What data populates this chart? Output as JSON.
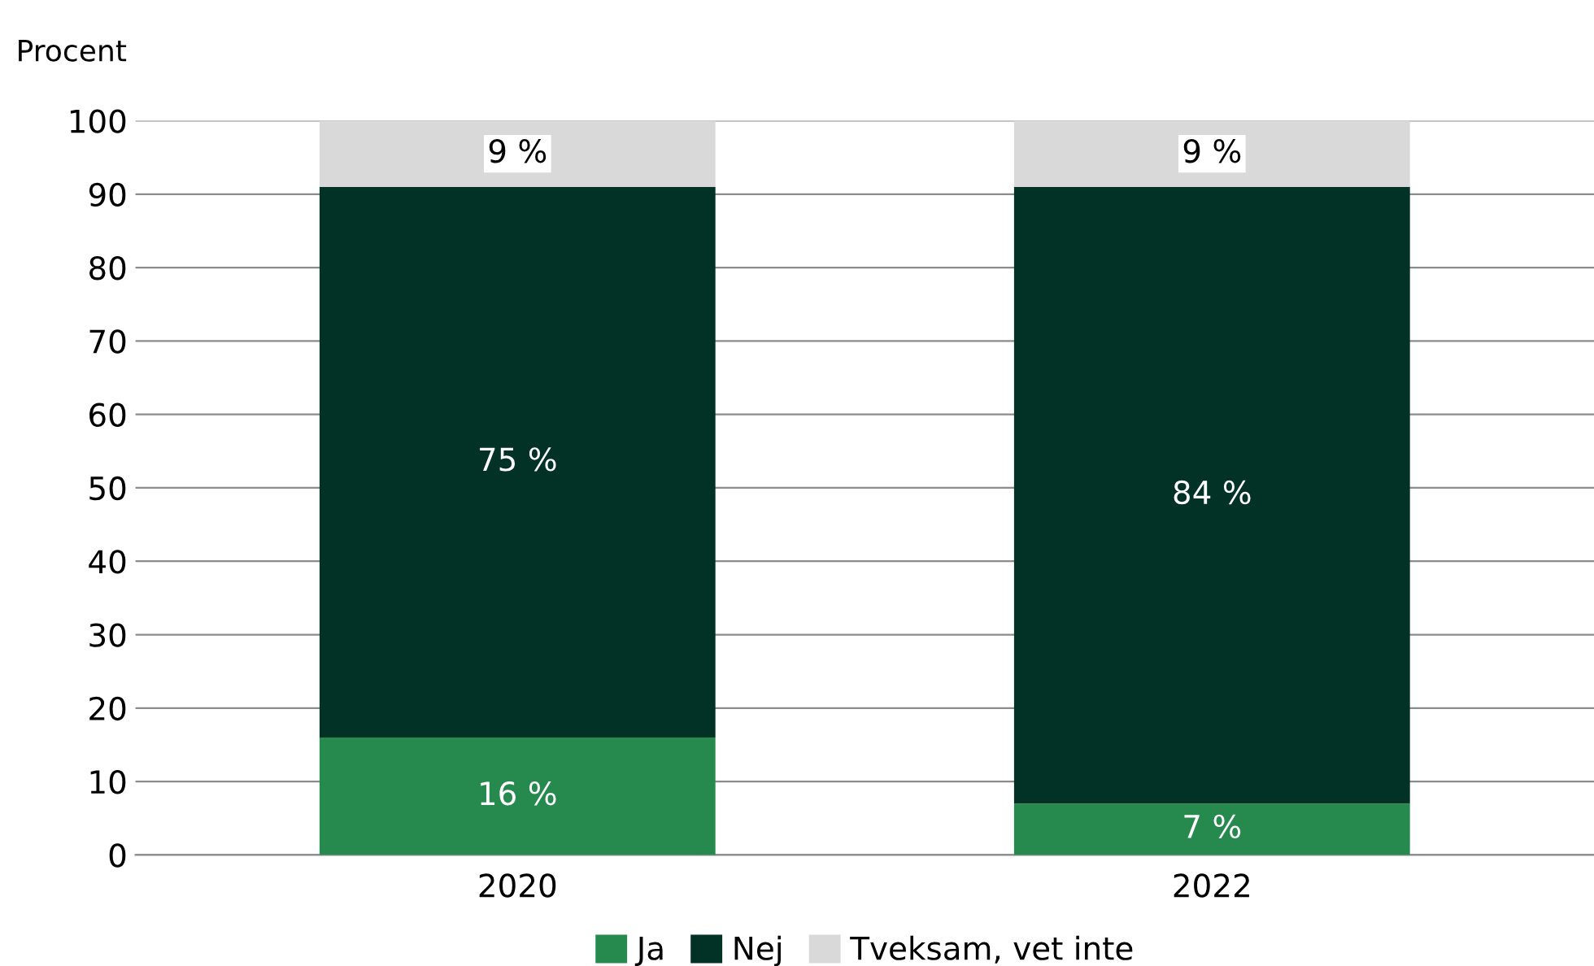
{
  "chart_data": {
    "type": "bar",
    "stacked": true,
    "ylabel": "Procent",
    "categories": [
      "2020",
      "2022"
    ],
    "series": [
      {
        "name": "Ja",
        "color": "#268a4f",
        "values": [
          16,
          7
        ],
        "value_labels": [
          "16 %",
          "7 %"
        ]
      },
      {
        "name": "Nej",
        "color": "#023225",
        "values": [
          75,
          84
        ],
        "value_labels": [
          "75 %",
          "84 %"
        ]
      },
      {
        "name": "Tveksam, vet inte",
        "color": "#d9d9d9",
        "values": [
          9,
          9
        ],
        "value_labels": [
          "9 %",
          "9 %"
        ]
      }
    ],
    "ylim": [
      0,
      100
    ],
    "yticks": [
      0,
      10,
      20,
      30,
      40,
      50,
      60,
      70,
      80,
      90,
      100
    ],
    "grid": "y",
    "legend": "bottom"
  }
}
